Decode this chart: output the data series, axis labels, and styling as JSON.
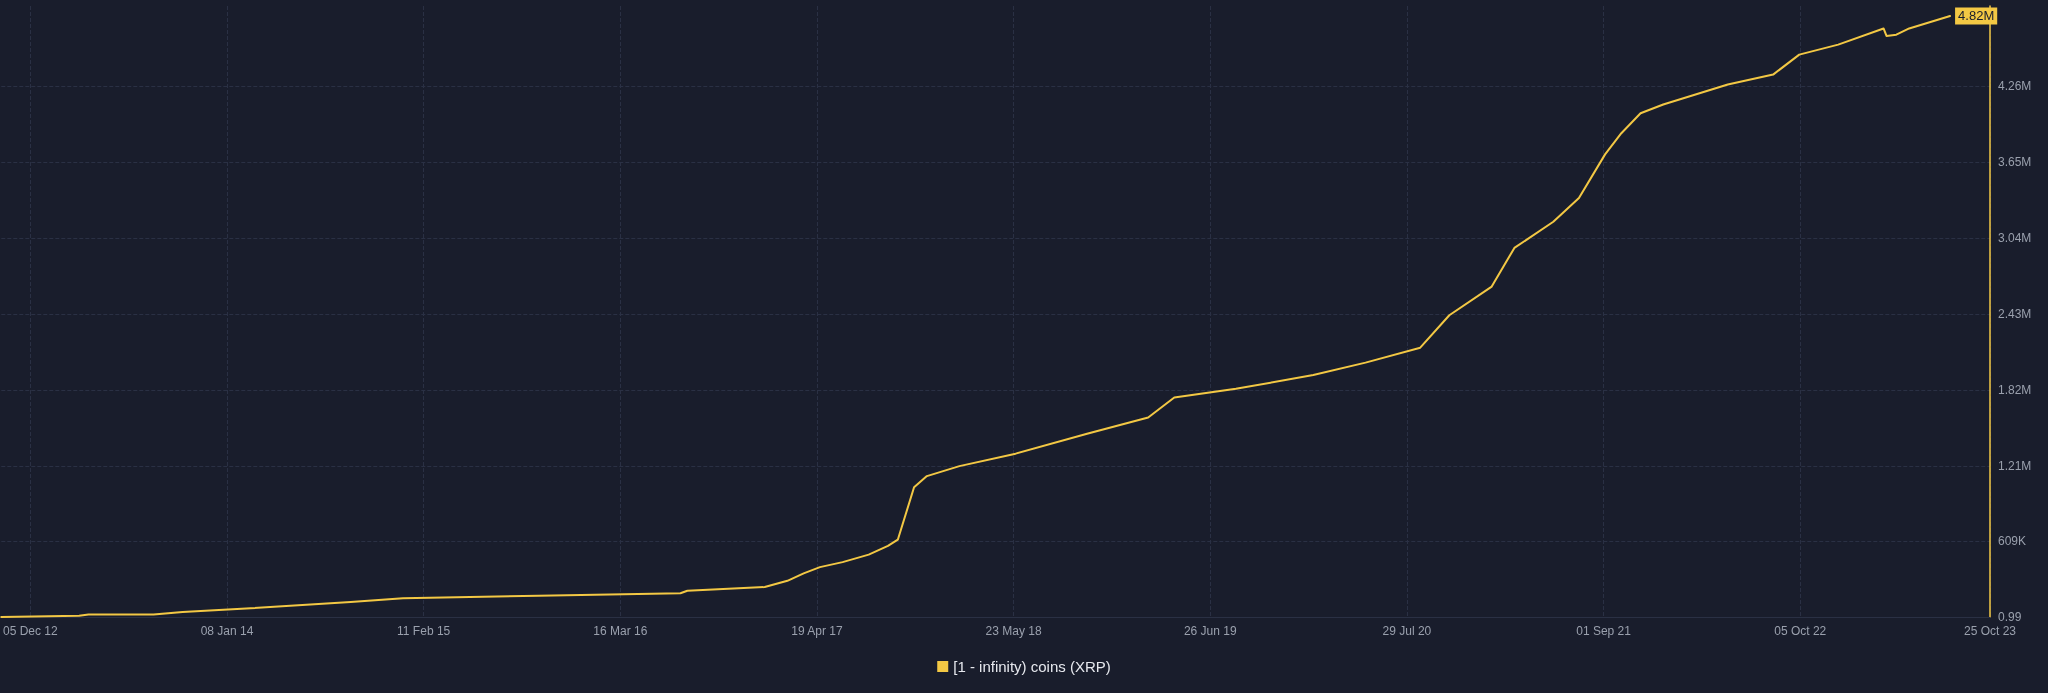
{
  "chart_data": {
    "type": "line",
    "legend": "bottom",
    "grid": true,
    "marker": "none",
    "line_style": "solid",
    "xlim": [
      "2012-10-07",
      "2023-10-25"
    ],
    "xticks": [
      {
        "value": "2012-12-05",
        "label": "05 Dec 12"
      },
      {
        "value": "2014-01-08",
        "label": "08 Jan 14"
      },
      {
        "value": "2015-02-11",
        "label": "11 Feb 15"
      },
      {
        "value": "2016-03-16",
        "label": "16 Mar 16"
      },
      {
        "value": "2017-04-19",
        "label": "19 Apr 17"
      },
      {
        "value": "2018-05-23",
        "label": "23 May 18"
      },
      {
        "value": "2019-06-26",
        "label": "26 Jun 19"
      },
      {
        "value": "2020-07-29",
        "label": "29 Jul 20"
      },
      {
        "value": "2021-09-01",
        "label": "01 Sep 21"
      },
      {
        "value": "2022-10-05",
        "label": "05 Oct 22"
      },
      {
        "value": "2023-10-25",
        "label": "25 Oct 23"
      }
    ],
    "ylim": [
      0,
      4900000
    ],
    "yticks": [
      0.99,
      {
        "value": 609000,
        "label": "609K"
      },
      {
        "value": 1210000,
        "label": "1.21M"
      },
      {
        "value": 1820000,
        "label": "1.82M"
      },
      {
        "value": 2430000,
        "label": "2.43M"
      },
      {
        "value": 3040000,
        "label": "3.04M"
      },
      {
        "value": 3650000,
        "label": "3.65M"
      },
      {
        "value": 4260000,
        "label": "4.26M"
      }
    ],
    "x": [
      "2012-10-07",
      "2013-03-14",
      "2013-04-02",
      "2013-08-12",
      "2013-10-10",
      "2014-02-25",
      "2014-09-16",
      "2014-12-31",
      "2015-10-02",
      "2016-07-16",
      "2016-07-30",
      "2017-01-03",
      "2017-02-18",
      "2017-03-23",
      "2017-04-25",
      "2017-06-10",
      "2017-08-02",
      "2017-09-10",
      "2017-09-30",
      "2017-11-02",
      "2017-11-28",
      "2018-02-02",
      "2018-05-27",
      "2018-10-19",
      "2019-02-20",
      "2019-04-14",
      "2019-08-17",
      "2020-01-21",
      "2020-05-06",
      "2020-08-25",
      "2020-10-23",
      "2021-01-17",
      "2021-03-04",
      "2021-05-22",
      "2021-07-13",
      "2021-09-04",
      "2021-10-07",
      "2021-11-15",
      "2021-12-31",
      "2022-05-11",
      "2022-08-11",
      "2022-10-03",
      "2022-12-21",
      "2023-03-23",
      "2023-03-29",
      "2023-04-18",
      "2023-05-14",
      "2023-08-05"
    ],
    "series": [
      {
        "name": "[1 - infinity) coins (XRP)",
        "color": "#f3c844",
        "values": [
          0,
          10000,
          20000,
          20000,
          40000,
          70000,
          120000,
          150000,
          170000,
          190000,
          210000,
          240000,
          290000,
          350000,
          400000,
          440000,
          500000,
          570000,
          620000,
          1040000,
          1130000,
          1210000,
          1310000,
          1470000,
          1600000,
          1760000,
          1830000,
          1940000,
          2040000,
          2160000,
          2420000,
          2650000,
          2960000,
          3170000,
          3360000,
          3710000,
          3880000,
          4040000,
          4110000,
          4270000,
          4350000,
          4510000,
          4590000,
          4720000,
          4660000,
          4670000,
          4720000,
          4820000
        ],
        "value_labels": [
          null,
          null,
          null,
          null,
          null,
          null,
          null,
          null,
          null,
          null,
          null,
          null,
          null,
          null,
          null,
          null,
          null,
          null,
          null,
          null,
          null,
          null,
          null,
          null,
          null,
          null,
          null,
          null,
          null,
          null,
          null,
          null,
          null,
          null,
          null,
          null,
          null,
          null,
          null,
          null,
          null,
          null,
          null,
          null,
          null,
          null,
          null,
          "4.82M"
        ]
      }
    ]
  }
}
